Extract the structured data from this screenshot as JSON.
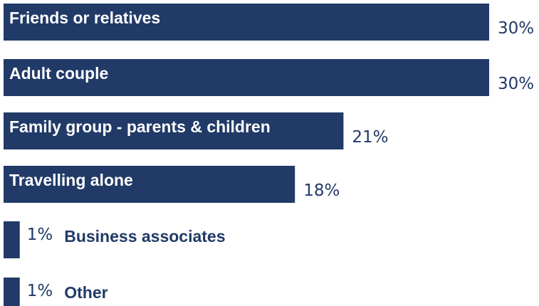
{
  "chart_data": {
    "type": "bar",
    "orientation": "horizontal",
    "categories": [
      "Friends or relatives",
      "Adult couple",
      "Family group - parents & children",
      "Travelling alone",
      "Business associates",
      "Other"
    ],
    "values": [
      30,
      30,
      21,
      18,
      1,
      1
    ],
    "value_labels": [
      "30%",
      "30%",
      "21%",
      "18%",
      "1%",
      "1%"
    ],
    "unit": "%",
    "xlim": [
      0,
      30
    ],
    "grid": false,
    "legend": "none",
    "colors": {
      "bar": "#213a67",
      "bar_text": "#ffffff",
      "value_text": "#213a67",
      "outside_label_text": "#213a67"
    }
  }
}
